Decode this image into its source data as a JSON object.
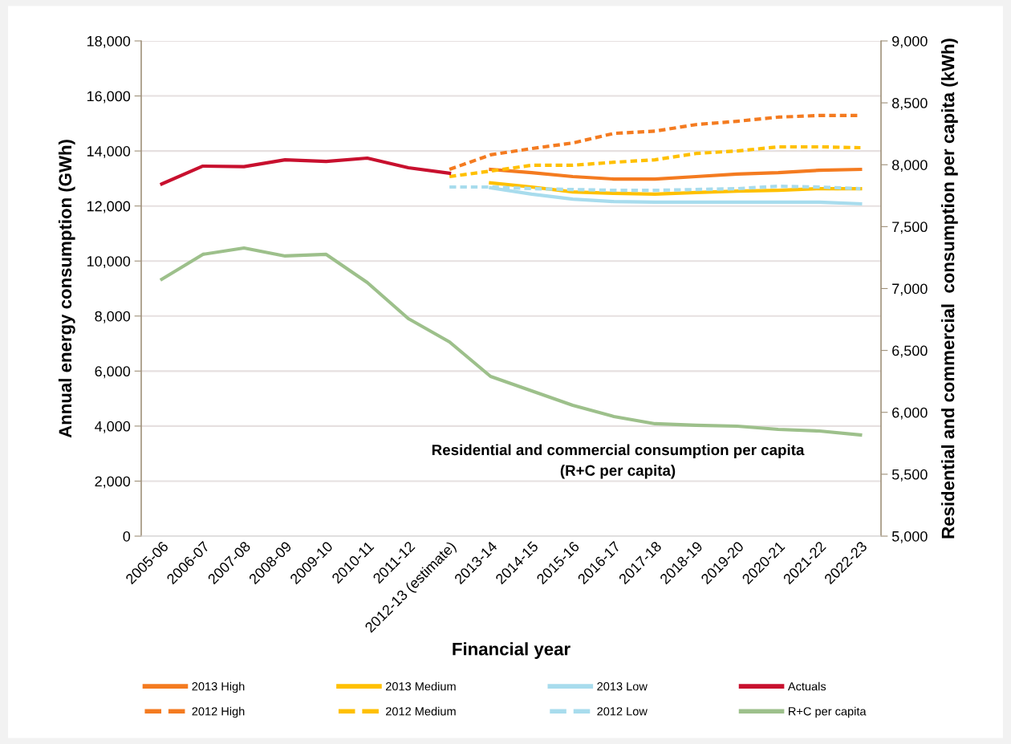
{
  "chart_data": {
    "type": "line",
    "xlabel": "Financial year",
    "ylabel": "Annual energy consumption (GWh)",
    "y2label": "Residential and commercial  consumption per capita (kWh)",
    "categories": [
      "2005-06",
      "2006-07",
      "2007-08",
      "2008-09",
      "2009-10",
      "2010-11",
      "2011-12",
      "2012-13 (estimate)",
      "2013-14",
      "2014-15",
      "2015-16",
      "2016-17",
      "2017-18",
      "2018-19",
      "2019-20",
      "2020-21",
      "2021-22",
      "2022-23"
    ],
    "ylim": [
      0,
      18000
    ],
    "yticks": [
      {
        "value": 0,
        "label": "0"
      },
      {
        "value": 2000,
        "label": "2,000"
      },
      {
        "value": 4000,
        "label": "4,000"
      },
      {
        "value": 6000,
        "label": "6,000"
      },
      {
        "value": 8000,
        "label": "8,000"
      },
      {
        "value": 10000,
        "label": "10,000"
      },
      {
        "value": 12000,
        "label": "12,000"
      },
      {
        "value": 14000,
        "label": "14,000"
      },
      {
        "value": 16000,
        "label": "16,000"
      },
      {
        "value": 18000,
        "label": "18,000"
      }
    ],
    "y2lim": [
      5000,
      9000
    ],
    "y2ticks": [
      {
        "value": 5000,
        "label": "5,000"
      },
      {
        "value": 5500,
        "label": "5,500"
      },
      {
        "value": 6000,
        "label": "6,000"
      },
      {
        "value": 6500,
        "label": "6,500"
      },
      {
        "value": 7000,
        "label": "7,000"
      },
      {
        "value": 7500,
        "label": "7,500"
      },
      {
        "value": 8000,
        "label": "8,000"
      },
      {
        "value": 8500,
        "label": "8,500"
      },
      {
        "value": 9000,
        "label": "9,000"
      }
    ],
    "grid": "y",
    "legend": "bottom",
    "marker": "none",
    "annotations": [
      "Residential and commercial consumption per capita\n(R+C per capita)"
    ],
    "series": [
      {
        "name": "2013 High",
        "color": "#f47b20",
        "line_style": "solid",
        "values": [
          null,
          null,
          null,
          null,
          null,
          null,
          null,
          null,
          13330,
          13210,
          13070,
          12980,
          12980,
          13070,
          13160,
          13210,
          13300,
          13330
        ]
      },
      {
        "name": "2012 High",
        "color": "#f47b20",
        "line_style": "dashed",
        "values": [
          null,
          null,
          null,
          null,
          null,
          null,
          null,
          13330,
          13860,
          14090,
          14290,
          14640,
          14720,
          14960,
          15080,
          15230,
          15290,
          15290
        ]
      },
      {
        "name": "2013 Medium",
        "color": "#ffc000",
        "line_style": "solid",
        "values": [
          null,
          null,
          null,
          null,
          null,
          null,
          null,
          null,
          12840,
          12690,
          12510,
          12460,
          12430,
          12490,
          12540,
          12570,
          12630,
          12630
        ]
      },
      {
        "name": "2012 Medium",
        "color": "#ffc000",
        "line_style": "dashed",
        "values": [
          null,
          null,
          null,
          null,
          null,
          null,
          null,
          13070,
          13270,
          13480,
          13480,
          13590,
          13680,
          13910,
          14000,
          14150,
          14150,
          14120
        ]
      },
      {
        "name": "2013 Low",
        "color": "#a8dced",
        "line_style": "solid",
        "values": [
          null,
          null,
          null,
          null,
          null,
          null,
          null,
          null,
          12660,
          12430,
          12250,
          12160,
          12140,
          12140,
          12140,
          12140,
          12140,
          12080
        ]
      },
      {
        "name": "2012 Low",
        "color": "#a8dced",
        "line_style": "dashed",
        "values": [
          null,
          null,
          null,
          null,
          null,
          null,
          null,
          12690,
          12690,
          12630,
          12600,
          12570,
          12570,
          12600,
          12630,
          12720,
          12690,
          12630
        ]
      },
      {
        "name": "Actuals",
        "color": "#c8102e",
        "line_style": "solid",
        "values": [
          12800,
          13450,
          13430,
          13680,
          13620,
          13740,
          13390,
          13190,
          null,
          null,
          null,
          null,
          null,
          null,
          null,
          null,
          null,
          null
        ]
      },
      {
        "name": "R+C per capita",
        "color": "#9dc08b",
        "line_style": "solid",
        "axis": "y2",
        "values": [
          7075,
          7276,
          7327,
          7263,
          7276,
          7049,
          6757,
          6569,
          6290,
          6173,
          6057,
          5966,
          5908,
          5895,
          5888,
          5862,
          5849,
          5817
        ]
      }
    ]
  }
}
